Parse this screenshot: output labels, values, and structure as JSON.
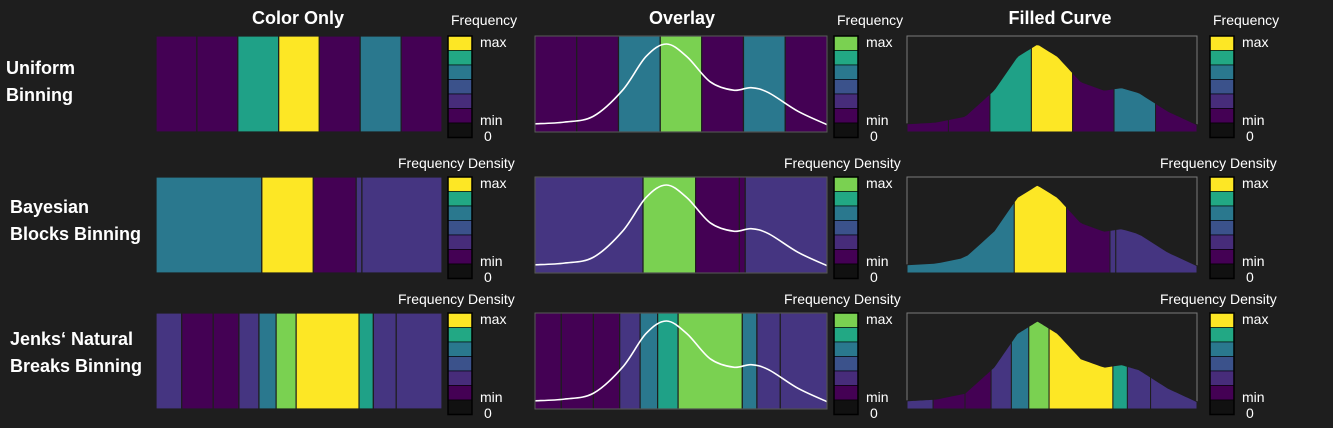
{
  "palette": [
    "#440154",
    "#46327e",
    "#365c8d",
    "#277f8e",
    "#1fa187",
    "#4ac16d",
    "#a0da39",
    "#fde725"
  ],
  "bin_colors": {
    "purple": "#440154",
    "indigo": "#453581",
    "teal": "#2a788e",
    "green_teal": "#1fa187",
    "green": "#7ad151",
    "yellow": "#fde725"
  },
  "column_titles": [
    "Color Only",
    "Overlay",
    "Filled Curve"
  ],
  "row_labels": [
    "Uniform\nBinning",
    "Bayesian\nBlocks Binning",
    "Jenks‘ Natural\nBreaks Binning"
  ],
  "legend": {
    "titles": [
      "Frequency",
      "Frequency Density",
      "Frequency Density"
    ],
    "max_label": "max",
    "min_label": "min",
    "zero_label": "0",
    "swatches": [
      "#7ad151",
      "#22a884",
      "#2a788e",
      "#3b528b",
      "#472c7a",
      "#440154",
      "#111111"
    ],
    "top_swatch_color_only": "#fde725"
  },
  "chart_data": [
    {
      "type": "heatmap",
      "title": "Uniform Binning",
      "x_range": [
        0,
        1
      ],
      "density_curve": [
        [
          0,
          0.05
        ],
        [
          0.1,
          0.07
        ],
        [
          0.2,
          0.14
        ],
        [
          0.3,
          0.45
        ],
        [
          0.38,
          0.85
        ],
        [
          0.45,
          1.0
        ],
        [
          0.52,
          0.85
        ],
        [
          0.6,
          0.55
        ],
        [
          0.68,
          0.45
        ],
        [
          0.74,
          0.48
        ],
        [
          0.8,
          0.42
        ],
        [
          0.9,
          0.2
        ],
        [
          1,
          0.04
        ]
      ],
      "bins": [
        {
          "start": 0.0,
          "end": 0.143,
          "color": "purple"
        },
        {
          "start": 0.143,
          "end": 0.286,
          "color": "purple"
        },
        {
          "start": 0.286,
          "end": 0.429,
          "color": "green_teal"
        },
        {
          "start": 0.429,
          "end": 0.571,
          "color": "yellow"
        },
        {
          "start": 0.571,
          "end": 0.714,
          "color": "purple"
        },
        {
          "start": 0.714,
          "end": 0.857,
          "color": "teal"
        },
        {
          "start": 0.857,
          "end": 1.0,
          "color": "purple"
        }
      ],
      "overlay_bins": [
        {
          "start": 0.0,
          "end": 0.143,
          "color": "purple"
        },
        {
          "start": 0.143,
          "end": 0.286,
          "color": "purple"
        },
        {
          "start": 0.286,
          "end": 0.429,
          "color": "teal"
        },
        {
          "start": 0.429,
          "end": 0.571,
          "color": "green"
        },
        {
          "start": 0.571,
          "end": 0.714,
          "color": "purple"
        },
        {
          "start": 0.714,
          "end": 0.857,
          "color": "teal"
        },
        {
          "start": 0.857,
          "end": 1.0,
          "color": "purple"
        }
      ]
    },
    {
      "type": "heatmap",
      "title": "Bayesian Blocks Binning",
      "x_range": [
        0,
        1
      ],
      "density_curve": [
        [
          0,
          0.05
        ],
        [
          0.1,
          0.07
        ],
        [
          0.2,
          0.14
        ],
        [
          0.3,
          0.45
        ],
        [
          0.38,
          0.85
        ],
        [
          0.45,
          1.0
        ],
        [
          0.52,
          0.85
        ],
        [
          0.6,
          0.55
        ],
        [
          0.68,
          0.45
        ],
        [
          0.74,
          0.48
        ],
        [
          0.8,
          0.42
        ],
        [
          0.9,
          0.2
        ],
        [
          1,
          0.04
        ]
      ],
      "bins": [
        {
          "start": 0.0,
          "end": 0.37,
          "color": "teal"
        },
        {
          "start": 0.37,
          "end": 0.55,
          "color": "yellow"
        },
        {
          "start": 0.55,
          "end": 0.7,
          "color": "purple"
        },
        {
          "start": 0.7,
          "end": 0.72,
          "color": "indigo"
        },
        {
          "start": 0.72,
          "end": 1.0,
          "color": "indigo"
        }
      ],
      "overlay_bins": [
        {
          "start": 0.0,
          "end": 0.37,
          "color": "indigo"
        },
        {
          "start": 0.37,
          "end": 0.55,
          "color": "green"
        },
        {
          "start": 0.55,
          "end": 0.7,
          "color": "purple"
        },
        {
          "start": 0.7,
          "end": 0.72,
          "color": "purple"
        },
        {
          "start": 0.72,
          "end": 1.0,
          "color": "indigo"
        }
      ],
      "filled_bins": [
        {
          "start": 0.0,
          "end": 0.37,
          "color": "teal"
        },
        {
          "start": 0.37,
          "end": 0.55,
          "color": "yellow"
        },
        {
          "start": 0.55,
          "end": 0.7,
          "color": "purple"
        },
        {
          "start": 0.7,
          "end": 0.72,
          "color": "indigo"
        },
        {
          "start": 0.72,
          "end": 1.0,
          "color": "indigo"
        }
      ]
    },
    {
      "type": "heatmap",
      "title": "Jenks‘ Natural Breaks Binning",
      "x_range": [
        0,
        1
      ],
      "density_curve": [
        [
          0,
          0.05
        ],
        [
          0.1,
          0.07
        ],
        [
          0.2,
          0.14
        ],
        [
          0.3,
          0.45
        ],
        [
          0.38,
          0.85
        ],
        [
          0.45,
          1.0
        ],
        [
          0.52,
          0.85
        ],
        [
          0.6,
          0.55
        ],
        [
          0.68,
          0.45
        ],
        [
          0.74,
          0.48
        ],
        [
          0.8,
          0.42
        ],
        [
          0.9,
          0.2
        ],
        [
          1,
          0.04
        ]
      ],
      "bins": [
        {
          "start": 0.0,
          "end": 0.09,
          "color": "indigo"
        },
        {
          "start": 0.09,
          "end": 0.2,
          "color": "purple"
        },
        {
          "start": 0.2,
          "end": 0.29,
          "color": "purple"
        },
        {
          "start": 0.29,
          "end": 0.36,
          "color": "indigo"
        },
        {
          "start": 0.36,
          "end": 0.42,
          "color": "teal"
        },
        {
          "start": 0.42,
          "end": 0.49,
          "color": "green"
        },
        {
          "start": 0.49,
          "end": 0.71,
          "color": "yellow"
        },
        {
          "start": 0.71,
          "end": 0.76,
          "color": "green_teal"
        },
        {
          "start": 0.76,
          "end": 0.84,
          "color": "indigo"
        },
        {
          "start": 0.84,
          "end": 1.0,
          "color": "indigo"
        }
      ],
      "overlay_bins": [
        {
          "start": 0.0,
          "end": 0.09,
          "color": "purple"
        },
        {
          "start": 0.09,
          "end": 0.2,
          "color": "purple"
        },
        {
          "start": 0.2,
          "end": 0.29,
          "color": "purple"
        },
        {
          "start": 0.29,
          "end": 0.36,
          "color": "indigo"
        },
        {
          "start": 0.36,
          "end": 0.42,
          "color": "teal"
        },
        {
          "start": 0.42,
          "end": 0.49,
          "color": "green_teal"
        },
        {
          "start": 0.49,
          "end": 0.71,
          "color": "green"
        },
        {
          "start": 0.71,
          "end": 0.76,
          "color": "teal"
        },
        {
          "start": 0.76,
          "end": 0.84,
          "color": "indigo"
        },
        {
          "start": 0.84,
          "end": 1.0,
          "color": "indigo"
        }
      ],
      "filled_bins": [
        {
          "start": 0.0,
          "end": 0.09,
          "color": "indigo"
        },
        {
          "start": 0.09,
          "end": 0.2,
          "color": "purple"
        },
        {
          "start": 0.2,
          "end": 0.29,
          "color": "purple"
        },
        {
          "start": 0.29,
          "end": 0.36,
          "color": "indigo"
        },
        {
          "start": 0.36,
          "end": 0.42,
          "color": "teal"
        },
        {
          "start": 0.42,
          "end": 0.49,
          "color": "green"
        },
        {
          "start": 0.49,
          "end": 0.71,
          "color": "yellow"
        },
        {
          "start": 0.71,
          "end": 0.76,
          "color": "green_teal"
        },
        {
          "start": 0.76,
          "end": 0.84,
          "color": "indigo"
        },
        {
          "start": 0.84,
          "end": 1.0,
          "color": "indigo"
        }
      ]
    }
  ]
}
